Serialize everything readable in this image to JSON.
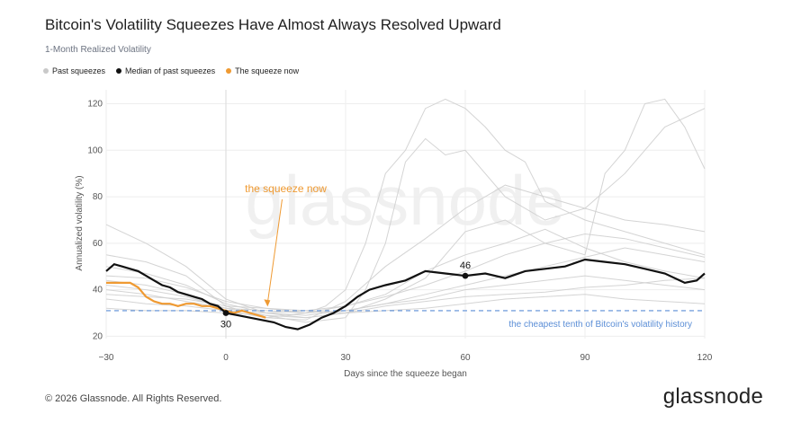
{
  "title": "Bitcoin's Volatility Squeezes Have Almost Always Resolved Upward",
  "subtitle": "1-Month Realized Volatility",
  "legend": [
    {
      "label": "Past squeezes",
      "color": "#c9c9c9"
    },
    {
      "label": "Median of past squeezes",
      "color": "#111111"
    },
    {
      "label": "The squeeze now",
      "color": "#ef9a32"
    }
  ],
  "footer": "© 2026 Glassnode. All Rights Reserved.",
  "brand": "glassnode",
  "watermark": "glassnode",
  "chart_data": {
    "type": "line",
    "xlabel": "Days since the squeeze began",
    "ylabel": "Annualized volatility (%)",
    "xlim": [
      -30,
      120
    ],
    "ylim": [
      19,
      126
    ],
    "xticks": [
      -30,
      0,
      30,
      60,
      90,
      120
    ],
    "yticks": [
      20,
      40,
      60,
      80,
      100,
      120
    ],
    "grid": true,
    "legend_position": "top-left",
    "threshold": {
      "value": 31,
      "label": "the cheapest tenth of Bitcoin's volatility history",
      "color": "#5b8ed6"
    },
    "annotations": [
      {
        "text": "the squeeze now",
        "x": 15,
        "y": 82,
        "target_x": 10,
        "target_y": 32,
        "color": "#ef9a32"
      },
      {
        "text": "30",
        "x": 0,
        "y": 30
      },
      {
        "text": "46",
        "x": 60,
        "y": 46
      }
    ],
    "series": [
      {
        "name": "Median of past squeezes",
        "color": "#111111",
        "x": [
          -30,
          -28,
          -26,
          -24,
          -22,
          -20,
          -18,
          -16,
          -14,
          -12,
          -10,
          -8,
          -6,
          -4,
          -2,
          0,
          3,
          6,
          9,
          12,
          15,
          18,
          21,
          24,
          27,
          30,
          33,
          36,
          40,
          45,
          50,
          55,
          60,
          65,
          70,
          75,
          80,
          85,
          90,
          95,
          100,
          105,
          110,
          115,
          118,
          120
        ],
        "y": [
          48,
          51,
          50,
          49,
          48,
          46,
          44,
          42,
          41,
          39,
          38,
          37,
          36,
          34,
          33,
          30,
          29,
          28,
          27,
          26,
          24,
          23,
          25,
          28,
          30,
          33,
          37,
          40,
          42,
          44,
          48,
          47,
          46,
          47,
          45,
          48,
          49,
          50,
          53,
          52,
          51,
          49,
          47,
          43,
          44,
          47
        ]
      },
      {
        "name": "The squeeze now",
        "color": "#ef9a32",
        "x": [
          -30,
          -28,
          -26,
          -24,
          -22,
          -20,
          -18,
          -16,
          -14,
          -12,
          -10,
          -8,
          -6,
          -4,
          -2,
          0,
          2,
          4,
          6,
          8,
          10
        ],
        "y": [
          43,
          43,
          43,
          43,
          41,
          37,
          35,
          34,
          34,
          33,
          34,
          34,
          33,
          33,
          32,
          31,
          30,
          31,
          30,
          29,
          28
        ]
      },
      {
        "color": "#cfcfcf",
        "x": [
          -30,
          -20,
          -10,
          0,
          10,
          20,
          25,
          30,
          35,
          40,
          45,
          50,
          55,
          60,
          65,
          70,
          75,
          80,
          90,
          100,
          110,
          120
        ],
        "y": [
          44,
          42,
          38,
          31,
          28,
          30,
          33,
          40,
          60,
          90,
          100,
          118,
          122,
          118,
          110,
          100,
          95,
          78,
          70,
          65,
          60,
          55
        ]
      },
      {
        "color": "#cfcfcf",
        "x": [
          -30,
          -20,
          -10,
          0,
          10,
          20,
          30,
          35,
          40,
          45,
          50,
          55,
          60,
          70,
          80,
          90,
          100,
          110,
          120
        ],
        "y": [
          40,
          38,
          35,
          32,
          29,
          26,
          28,
          40,
          60,
          95,
          105,
          98,
          100,
          80,
          70,
          75,
          90,
          110,
          118
        ]
      },
      {
        "color": "#cfcfcf",
        "x": [
          -30,
          -20,
          -10,
          0,
          10,
          20,
          30,
          40,
          50,
          60,
          70,
          80,
          90,
          95,
          100,
          105,
          110,
          115,
          120
        ],
        "y": [
          50,
          47,
          42,
          34,
          30,
          28,
          30,
          36,
          45,
          65,
          70,
          60,
          55,
          90,
          100,
          120,
          122,
          110,
          92
        ]
      },
      {
        "color": "#cfcfcf",
        "x": [
          -30,
          -20,
          -10,
          0,
          10,
          20,
          30,
          40,
          50,
          60,
          70,
          80,
          90,
          100,
          110,
          120
        ],
        "y": [
          36,
          34,
          33,
          31,
          30,
          29,
          31,
          34,
          36,
          40,
          42,
          44,
          46,
          44,
          42,
          40
        ]
      },
      {
        "color": "#cfcfcf",
        "x": [
          -30,
          -20,
          -10,
          0,
          10,
          20,
          30,
          40,
          50,
          60,
          70,
          80,
          90,
          100,
          110,
          120
        ],
        "y": [
          32,
          31,
          31,
          30,
          29,
          28,
          30,
          33,
          35,
          37,
          38,
          39,
          41,
          42,
          44,
          45
        ]
      },
      {
        "color": "#cfcfcf",
        "x": [
          -30,
          -20,
          -10,
          0,
          10,
          20,
          30,
          40,
          50,
          60,
          70,
          80,
          90,
          100,
          110,
          120
        ],
        "y": [
          55,
          52,
          46,
          33,
          28,
          27,
          35,
          50,
          62,
          75,
          85,
          80,
          75,
          70,
          68,
          65
        ]
      },
      {
        "color": "#cfcfcf",
        "x": [
          -30,
          -20,
          -10,
          0,
          10,
          20,
          30,
          40,
          50,
          60,
          70,
          80,
          90,
          100,
          110,
          120
        ],
        "y": [
          68,
          60,
          50,
          36,
          30,
          31,
          33,
          38,
          48,
          55,
          60,
          66,
          58,
          52,
          48,
          45
        ]
      },
      {
        "color": "#cfcfcf",
        "x": [
          -30,
          -20,
          -10,
          0,
          10,
          20,
          30,
          40,
          50,
          60,
          70,
          80,
          90,
          100,
          110,
          120
        ],
        "y": [
          38,
          37,
          36,
          33,
          32,
          31,
          30,
          31,
          32,
          34,
          36,
          37,
          38,
          36,
          35,
          34
        ]
      },
      {
        "color": "#cfcfcf",
        "x": [
          -30,
          -20,
          -10,
          0,
          10,
          20,
          30,
          40,
          50,
          60,
          70,
          80,
          90,
          100,
          110,
          120
        ],
        "y": [
          46,
          45,
          41,
          35,
          32,
          30,
          31,
          34,
          38,
          42,
          46,
          50,
          54,
          58,
          55,
          52
        ]
      },
      {
        "color": "#cfcfcf",
        "x": [
          -30,
          -20,
          -10,
          0,
          10,
          20,
          30,
          40,
          50,
          60,
          70,
          80,
          90,
          100,
          110,
          120
        ],
        "y": [
          42,
          40,
          37,
          32,
          31,
          30,
          33,
          37,
          42,
          48,
          55,
          60,
          64,
          62,
          58,
          54
        ]
      }
    ]
  }
}
